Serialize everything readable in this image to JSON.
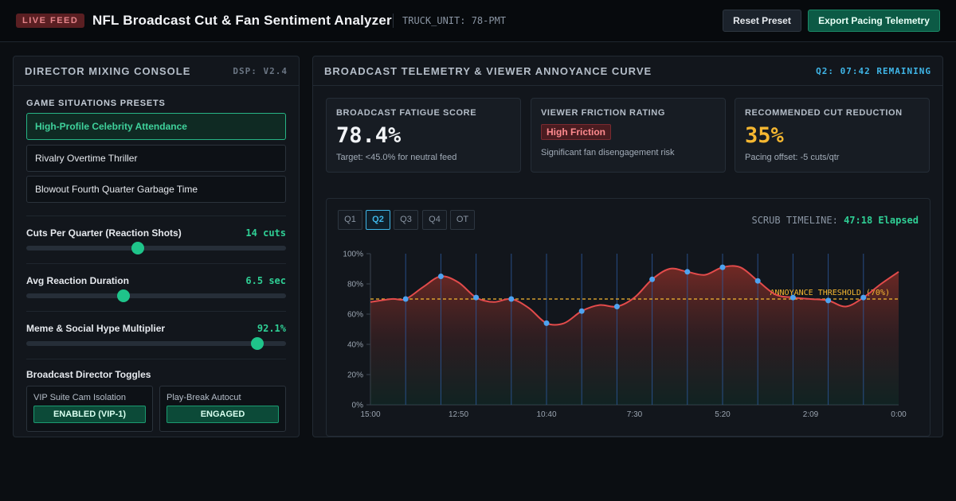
{
  "header": {
    "live_badge": "LIVE FEED",
    "title": "NFL Broadcast Cut & Fan Sentiment Analyzer",
    "truck_unit": "TRUCK_UNIT: 78-PMT",
    "reset_label": "Reset Preset",
    "export_label": "Export Pacing Telemetry"
  },
  "console": {
    "title": "DIRECTOR MIXING CONSOLE",
    "version": "DSP: V2.4",
    "presets_label": "GAME SITUATIONS PRESETS",
    "presets": [
      {
        "label": "High-Profile Celebrity Attendance",
        "active": true
      },
      {
        "label": "Rivalry Overtime Thriller",
        "active": false
      },
      {
        "label": "Blowout Fourth Quarter Garbage Time",
        "active": false
      }
    ],
    "sliders": [
      {
        "label": "Cuts Per Quarter (Reaction Shots)",
        "value": "14 cuts",
        "level": 0.43
      },
      {
        "label": "Avg Reaction Duration",
        "value": "6.5 sec",
        "level": 0.375
      },
      {
        "label": "Meme & Social Hype Multiplier",
        "value": "92.1%",
        "level": 0.89
      }
    ],
    "toggles_label": "Broadcast Director Toggles",
    "toggles": [
      {
        "name": "VIP Suite Cam Isolation",
        "state": "ENABLED (VIP-1)"
      },
      {
        "name": "Play-Break Autocut",
        "state": "ENGAGED"
      }
    ]
  },
  "telemetry": {
    "title": "BROADCAST TELEMETRY & VIEWER ANNOYANCE CURVE",
    "clock": "Q2: 07:42 REMAINING",
    "kpis": {
      "fatigue": {
        "label": "BROADCAST FATIGUE SCORE",
        "value": "78.4%",
        "sub": "Target: <45.0% for neutral feed"
      },
      "friction": {
        "label": "VIEWER FRICTION RATING",
        "badge": "High Friction",
        "sub": "Significant fan disengagement risk"
      },
      "cut": {
        "label": "RECOMMENDED CUT REDUCTION",
        "value": "35%",
        "sub": "Pacing offset: -5 cuts/qtr"
      }
    },
    "quarter_tabs": [
      {
        "label": "Q1",
        "active": false
      },
      {
        "label": "Q2",
        "active": true
      },
      {
        "label": "Q3",
        "active": false
      },
      {
        "label": "Q4",
        "active": false
      },
      {
        "label": "OT",
        "active": false
      }
    ],
    "scrub_label": "SCRUB TIMELINE:",
    "scrub_value": "47:18 Elapsed"
  },
  "chart_data": {
    "type": "area",
    "x_ticks": [
      "15:00",
      "12:50",
      "10:40",
      "7:30",
      "5:20",
      "2:09",
      "0:00"
    ],
    "y_ticks": [
      "0%",
      "20%",
      "40%",
      "60%",
      "80%",
      "100%"
    ],
    "ylim": [
      0,
      100
    ],
    "threshold": {
      "value": 70,
      "label": "ANNOYANCE THRESHOLD (70%)"
    },
    "curve": [
      {
        "x": 0,
        "y": 68
      },
      {
        "x": 0.6,
        "y": 70
      },
      {
        "x": 1,
        "y": 70
      },
      {
        "x": 1.5,
        "y": 78
      },
      {
        "x": 2,
        "y": 85
      },
      {
        "x": 2.5,
        "y": 81
      },
      {
        "x": 3,
        "y": 71
      },
      {
        "x": 3.5,
        "y": 68
      },
      {
        "x": 4,
        "y": 70
      },
      {
        "x": 4.5,
        "y": 64
      },
      {
        "x": 5,
        "y": 54
      },
      {
        "x": 5.5,
        "y": 54
      },
      {
        "x": 6,
        "y": 62
      },
      {
        "x": 6.5,
        "y": 66
      },
      {
        "x": 7,
        "y": 65
      },
      {
        "x": 7.5,
        "y": 71
      },
      {
        "x": 8,
        "y": 83
      },
      {
        "x": 8.5,
        "y": 90
      },
      {
        "x": 9,
        "y": 88
      },
      {
        "x": 9.5,
        "y": 86
      },
      {
        "x": 10,
        "y": 91
      },
      {
        "x": 10.5,
        "y": 91
      },
      {
        "x": 11,
        "y": 82
      },
      {
        "x": 11.5,
        "y": 73
      },
      {
        "x": 12,
        "y": 71
      },
      {
        "x": 12.5,
        "y": 70
      },
      {
        "x": 13,
        "y": 69
      },
      {
        "x": 13.5,
        "y": 65
      },
      {
        "x": 14,
        "y": 71
      },
      {
        "x": 14.5,
        "y": 80
      },
      {
        "x": 15,
        "y": 88
      }
    ],
    "markers": [
      {
        "x": 1,
        "y": 70
      },
      {
        "x": 2,
        "y": 85
      },
      {
        "x": 3,
        "y": 71
      },
      {
        "x": 4,
        "y": 70
      },
      {
        "x": 5,
        "y": 54
      },
      {
        "x": 6,
        "y": 62
      },
      {
        "x": 7,
        "y": 65
      },
      {
        "x": 8,
        "y": 83
      },
      {
        "x": 9,
        "y": 88
      },
      {
        "x": 10,
        "y": 91
      },
      {
        "x": 11,
        "y": 82
      },
      {
        "x": 12,
        "y": 71
      },
      {
        "x": 13,
        "y": 69
      },
      {
        "x": 14,
        "y": 71
      }
    ],
    "grid": true,
    "colors": {
      "line": "#e24b4b",
      "marker": "#4ea3f0",
      "threshold": "#f5b731",
      "cut_lines": "#2c5aa0"
    }
  }
}
